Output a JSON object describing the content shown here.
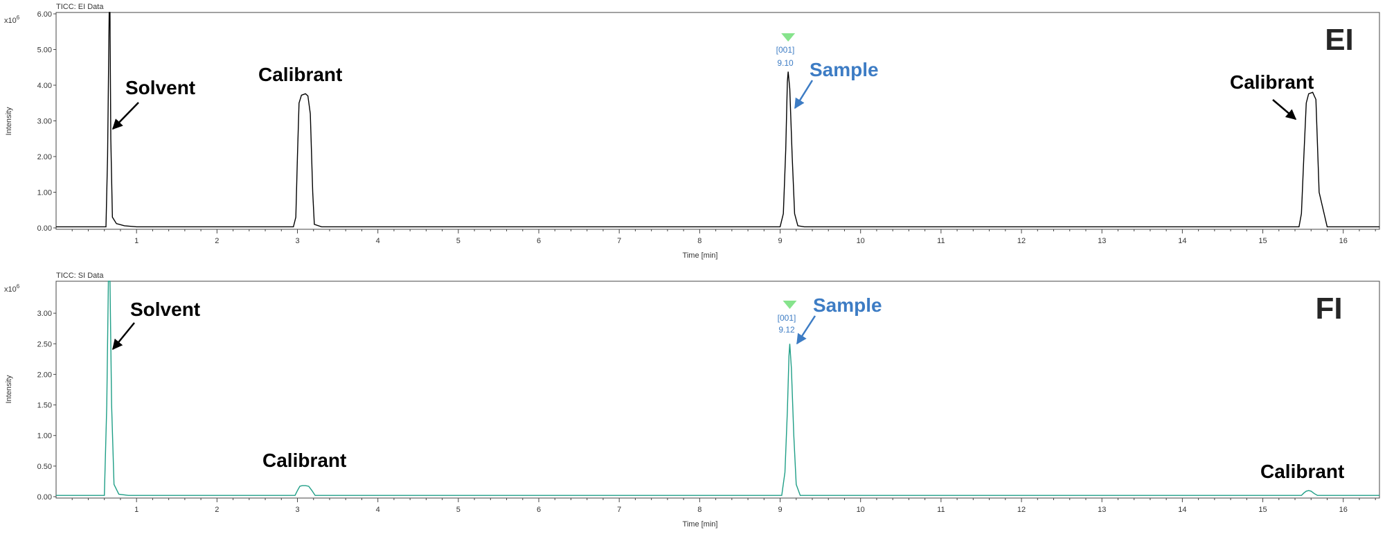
{
  "colors": {
    "ei_trace": "#000000",
    "fi_trace": "#1e9e86",
    "annotation_blue": "#3d7cc4",
    "marker_green": "#86e38c",
    "axis": "#444444"
  },
  "chart_data": [
    {
      "type": "line",
      "header": "TICC: EI Data",
      "mode_label": "EI",
      "multiplier_label": "x10",
      "multiplier_exp": "6",
      "ylabel": "Intensity",
      "xlabel": "Time [min]",
      "xlim": [
        0.0,
        16.45
      ],
      "ylim": [
        0,
        6.0
      ],
      "x_ticks": [
        1,
        2,
        3,
        4,
        5,
        6,
        7,
        8,
        9,
        10,
        11,
        12,
        13,
        14,
        15,
        16
      ],
      "x_tick_labels": [
        "1",
        "2",
        "3",
        "4",
        "5",
        "6",
        "7",
        "8",
        "9",
        "10",
        "11",
        "12",
        "13",
        "14",
        "15",
        "16"
      ],
      "y_ticks": [
        0,
        1,
        2,
        3,
        4,
        5,
        6
      ],
      "y_tick_labels": [
        "0.00",
        "1.00",
        "2.00",
        "3.00",
        "4.00",
        "5.00",
        "6.00"
      ],
      "trace_color": "#000000",
      "series": [
        {
          "x": [
            0.0,
            0.62,
            0.64,
            0.66,
            0.67,
            0.68,
            0.7,
            0.75,
            0.85,
            1.0,
            2.95,
            2.98,
            3.0,
            3.02,
            3.05,
            3.1,
            3.13,
            3.16,
            3.19,
            3.21,
            3.3,
            9.0,
            9.04,
            9.07,
            9.09,
            9.1,
            9.12,
            9.15,
            9.18,
            9.22,
            9.3,
            15.45,
            15.48,
            15.51,
            15.54,
            15.57,
            15.62,
            15.66,
            15.7,
            15.8,
            16.45
          ],
          "y": [
            0.03,
            0.03,
            2.0,
            6.6,
            6.6,
            2.5,
            0.3,
            0.12,
            0.06,
            0.03,
            0.03,
            0.3,
            2.0,
            3.5,
            3.72,
            3.76,
            3.7,
            3.2,
            1.0,
            0.1,
            0.03,
            0.03,
            0.4,
            2.2,
            4.1,
            4.38,
            3.9,
            2.0,
            0.4,
            0.06,
            0.03,
            0.03,
            0.4,
            2.0,
            3.5,
            3.76,
            3.8,
            3.6,
            1.0,
            0.03,
            0.03
          ]
        }
      ],
      "peak_marker": {
        "x": 9.1,
        "id": "[001]",
        "rt": "9.10"
      },
      "annotations": [
        {
          "text": "Solvent",
          "style": "black"
        },
        {
          "text": "Calibrant",
          "style": "black"
        },
        {
          "text": "Sample",
          "style": "blue"
        },
        {
          "text": "Calibrant",
          "style": "black"
        }
      ]
    },
    {
      "type": "line",
      "header": "TICC: SI Data",
      "mode_label": "FI",
      "multiplier_label": "x10",
      "multiplier_exp": "6",
      "ylabel": "Intensity",
      "xlabel": "Time [min]",
      "xlim": [
        0.0,
        16.45
      ],
      "ylim": [
        0,
        3.5
      ],
      "x_ticks": [
        1,
        2,
        3,
        4,
        5,
        6,
        7,
        8,
        9,
        10,
        11,
        12,
        13,
        14,
        15,
        16
      ],
      "x_tick_labels": [
        "1",
        "2",
        "3",
        "4",
        "5",
        "6",
        "7",
        "8",
        "9",
        "10",
        "11",
        "12",
        "13",
        "14",
        "15",
        "16"
      ],
      "y_ticks": [
        0,
        0.5,
        1.0,
        1.5,
        2.0,
        2.5,
        3.0
      ],
      "y_tick_labels": [
        "0.00",
        "0.50",
        "1.00",
        "1.50",
        "2.00",
        "2.50",
        "3.00"
      ],
      "trace_color": "#1e9e86",
      "series": [
        {
          "x": [
            0.0,
            0.6,
            0.63,
            0.65,
            0.67,
            0.69,
            0.72,
            0.78,
            0.9,
            2.97,
            3.0,
            3.03,
            3.06,
            3.1,
            3.14,
            3.18,
            3.22,
            9.02,
            9.06,
            9.09,
            9.11,
            9.12,
            9.14,
            9.17,
            9.2,
            9.25,
            15.48,
            15.51,
            15.54,
            15.57,
            15.6,
            15.64,
            15.68,
            16.45
          ],
          "y": [
            0.02,
            0.02,
            1.5,
            3.6,
            3.6,
            1.5,
            0.2,
            0.04,
            0.02,
            0.02,
            0.1,
            0.17,
            0.18,
            0.18,
            0.17,
            0.1,
            0.02,
            0.02,
            0.4,
            1.4,
            2.3,
            2.5,
            2.1,
            1.0,
            0.2,
            0.02,
            0.02,
            0.06,
            0.09,
            0.1,
            0.09,
            0.05,
            0.02,
            0.02
          ]
        }
      ],
      "peak_marker": {
        "x": 9.12,
        "id": "[001]",
        "rt": "9.12"
      },
      "annotations": [
        {
          "text": "Solvent",
          "style": "black"
        },
        {
          "text": "Calibrant",
          "style": "black"
        },
        {
          "text": "Sample",
          "style": "blue"
        },
        {
          "text": "Calibrant",
          "style": "black"
        }
      ]
    }
  ]
}
